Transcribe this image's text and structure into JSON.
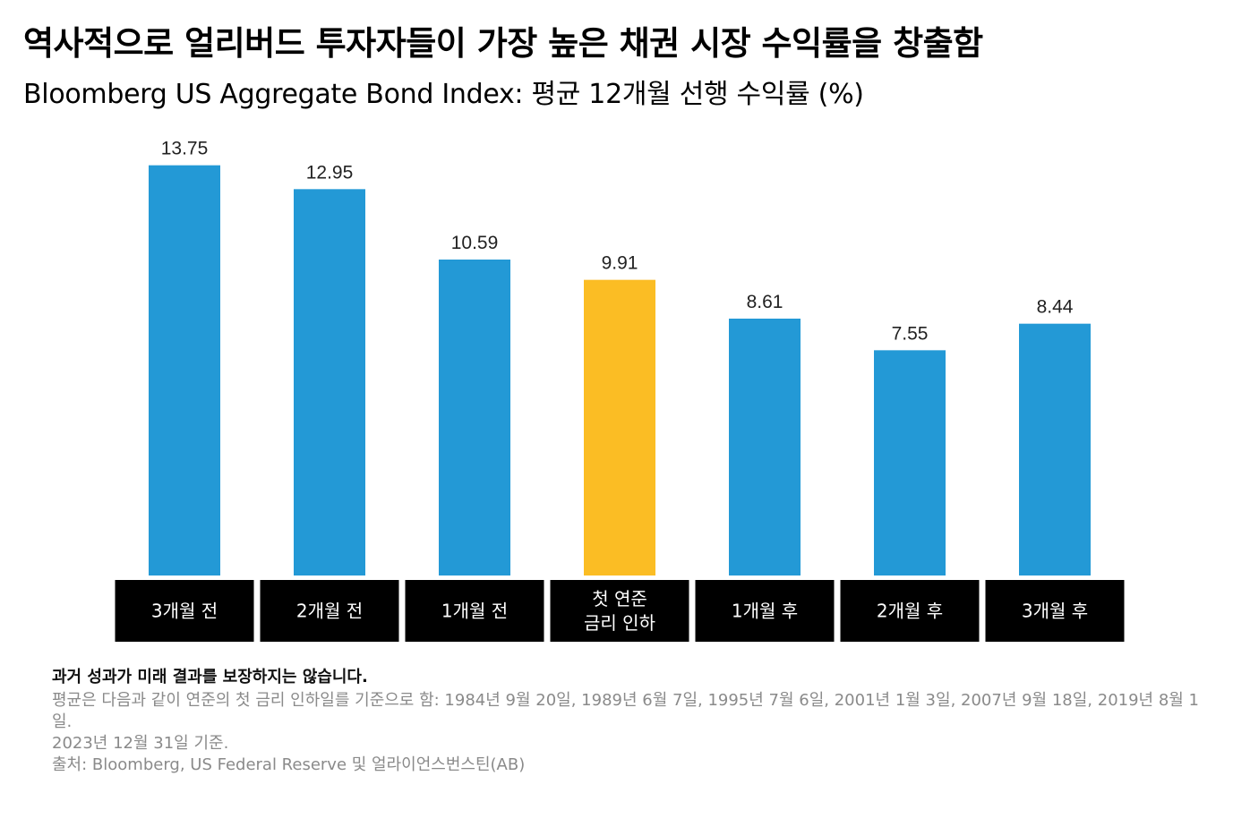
{
  "title": "역사적으로 얼리버드 투자자들이 가장 높은 채권 시장 수익률을 창출함",
  "subtitle": "Bloomberg US Aggregate Bond Index: 평균 12개월 선행 수익률 (%)",
  "chart_data": {
    "type": "bar",
    "categories": [
      "3개월 전",
      "2개월 전",
      "1개월 전",
      "첫 연준\n금리 인하",
      "1개월 후",
      "2개월 후",
      "3개월 후"
    ],
    "values": [
      13.75,
      12.95,
      10.59,
      9.91,
      8.61,
      7.55,
      8.44
    ],
    "data_labels": [
      "13.75",
      "12.95",
      "10.59",
      "9.91",
      "8.61",
      "7.55",
      "8.44"
    ],
    "highlight_index": 3,
    "ylim": [
      0,
      15
    ],
    "grid": false,
    "colors": {
      "bar": "#2399d6",
      "highlight": "#fbbd24",
      "category_box": "#000000",
      "category_text": "#ffffff"
    }
  },
  "footer": {
    "disclaimer": "과거 성과가 미래 결과를 보장하지는 않습니다.",
    "notes": [
      "평균은 다음과 같이 연준의 첫 금리 인하일를 기준으로 함: 1984년 9월 20일, 1989년 6월 7일, 1995년 7월 6일, 2001년 1월 3일, 2007년 9월 18일, 2019년 8월 1일.",
      "2023년 12월 31일 기준.",
      "출처: Bloomberg, US Federal Reserve 및 얼라이언스번스틴(AB)"
    ]
  }
}
